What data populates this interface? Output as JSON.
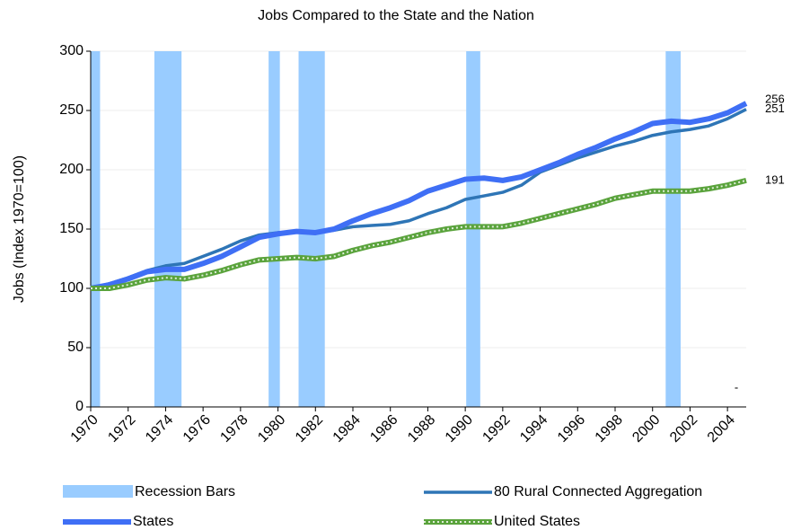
{
  "chart_data": {
    "type": "line",
    "title": "Jobs Compared to the State and the Nation",
    "y_label": "Jobs (Index 1970=100)",
    "x": [
      1970,
      1971,
      1972,
      1973,
      1974,
      1975,
      1976,
      1977,
      1978,
      1979,
      1980,
      1981,
      1982,
      1983,
      1984,
      1985,
      1986,
      1987,
      1988,
      1989,
      1990,
      1991,
      1992,
      1993,
      1994,
      1995,
      1996,
      1997,
      1998,
      1999,
      2000,
      2001,
      2002,
      2003,
      2004,
      2005
    ],
    "xlim": [
      1970,
      2005
    ],
    "xticks": [
      1970,
      1972,
      1974,
      1976,
      1978,
      1980,
      1982,
      1984,
      1986,
      1988,
      1990,
      1992,
      1994,
      1996,
      1998,
      2000,
      2002,
      2004
    ],
    "ylim": [
      0,
      300
    ],
    "yticks": [
      0,
      50,
      100,
      150,
      200,
      250,
      300
    ],
    "grid": true,
    "recessions": {
      "name": "Recession Bars",
      "color": "#99ccff",
      "ranges": [
        [
          1970,
          1970.5
        ],
        [
          1973.4,
          1974.85
        ],
        [
          1979.5,
          1980.1
        ],
        [
          1981.1,
          1982.5
        ],
        [
          1990.05,
          1990.8
        ],
        [
          2000.7,
          2001.5
        ]
      ]
    },
    "series": [
      {
        "name": "80 Rural Connected Aggregation",
        "color": "#2e75b6",
        "width": 3.5,
        "values": [
          100,
          104,
          109,
          115,
          119,
          121,
          127,
          133,
          140,
          145,
          147,
          148,
          147,
          149,
          152,
          153,
          154,
          157,
          163,
          168,
          175,
          178,
          181,
          187,
          198,
          204,
          210,
          215,
          220,
          224,
          229,
          232,
          234,
          237,
          243,
          251
        ]
      },
      {
        "name": "States",
        "color": "#3f6ff5",
        "width": 6,
        "values": [
          100,
          103,
          108,
          114,
          116,
          116,
          121,
          127,
          135,
          143,
          146,
          148,
          147,
          150,
          157,
          163,
          168,
          174,
          182,
          187,
          192,
          193,
          191,
          194,
          200,
          206,
          213,
          219,
          226,
          232,
          239,
          241,
          240,
          243,
          248,
          256
        ]
      },
      {
        "name": "United States",
        "color": "#5aa33c",
        "width": 6,
        "pattern": true,
        "values": [
          100,
          100,
          103,
          107,
          109,
          108,
          111,
          115,
          120,
          124,
          125,
          126,
          125,
          127,
          132,
          136,
          139,
          143,
          147,
          150,
          152,
          152,
          152,
          155,
          159,
          163,
          167,
          171,
          176,
          179,
          182,
          182,
          182,
          184,
          187,
          191
        ]
      }
    ],
    "annotation": "-"
  }
}
